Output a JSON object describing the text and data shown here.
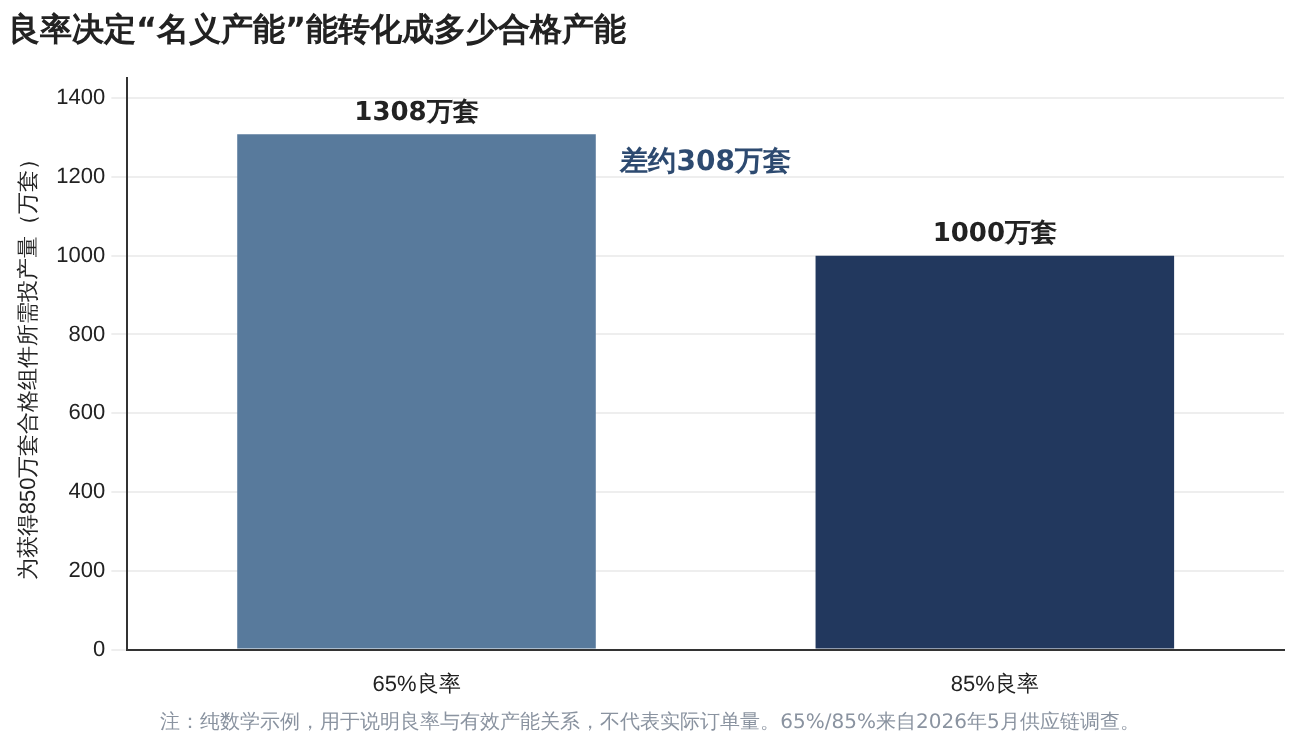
{
  "chart_data": {
    "type": "bar",
    "title": "良率决定“名义产能”能转化成多少合格产能",
    "ylabel": "为获得850万套合格组件所需投产量（万套）",
    "categories": [
      "65%良率",
      "85%良率"
    ],
    "values": [
      1308,
      1000
    ],
    "colors": [
      "#587a9c",
      "#22385e"
    ],
    "value_labels": [
      "1308万套",
      "1000万套"
    ],
    "ylim": [
      0,
      1450
    ],
    "yticks": [
      0,
      200,
      400,
      600,
      800,
      1000,
      1200,
      1400
    ],
    "grid": "y",
    "annotations": [
      "差约308万套",
      "注：纯数学示例，用于说明良率与有效产能关系，不代表实际订单量。65%/85%来自2026年5月供应链调查。"
    ]
  }
}
